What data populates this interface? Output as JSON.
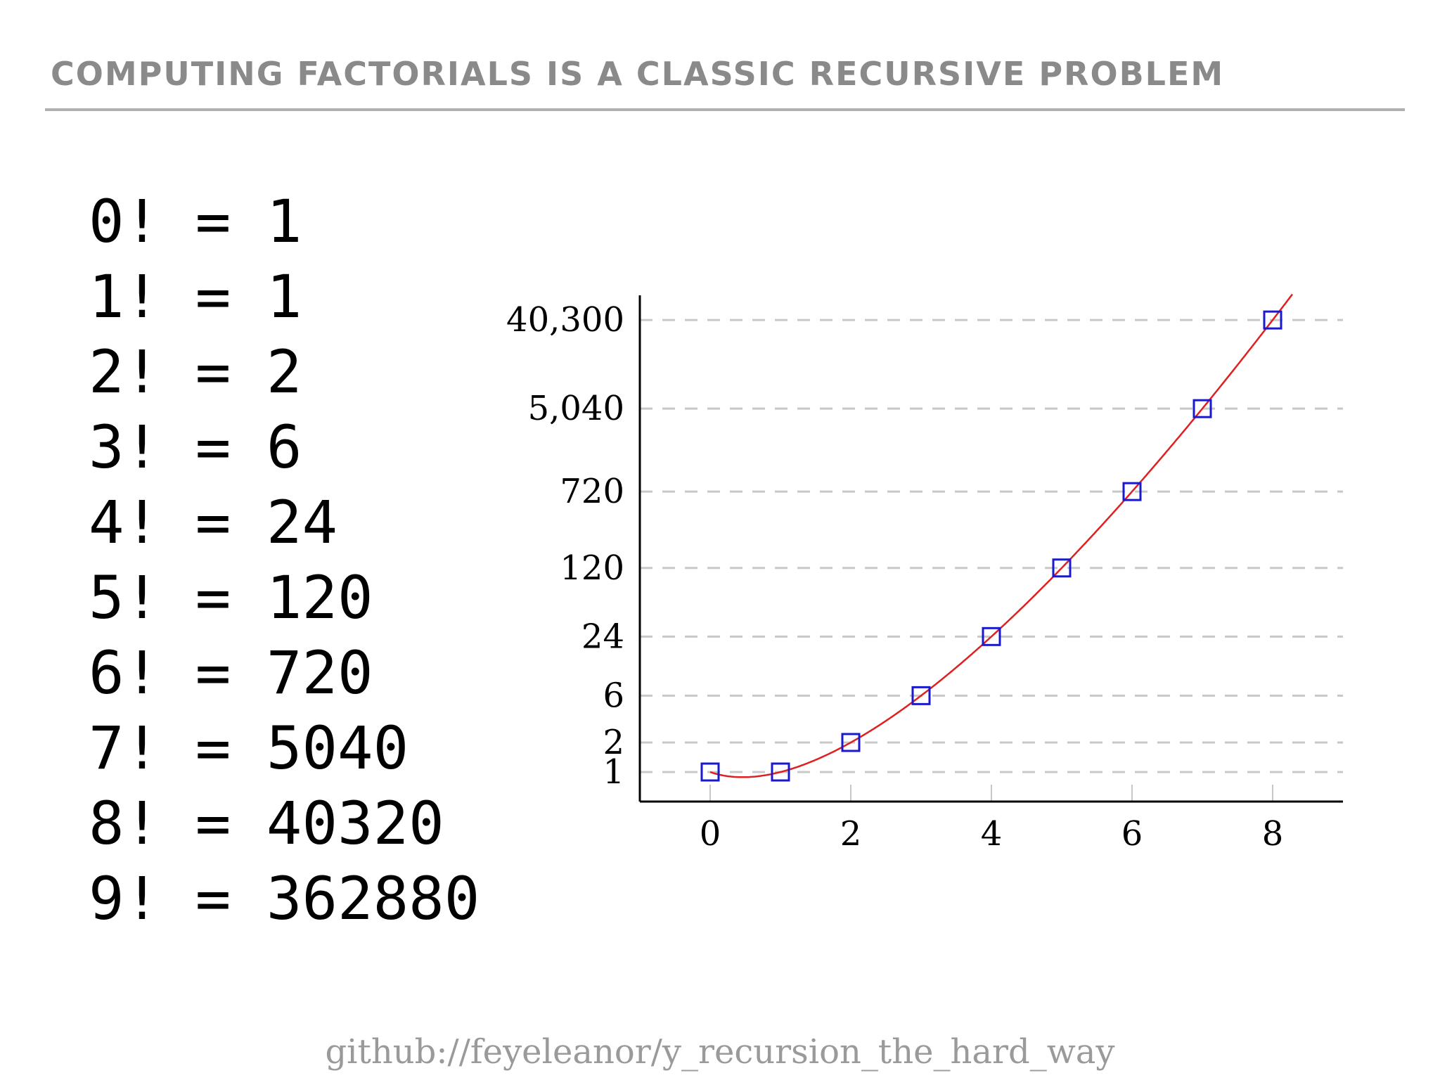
{
  "header": {
    "title": "COMPUTING FACTORIALS IS A CLASSIC RECURSIVE PROBLEM"
  },
  "factorials": [
    {
      "n": "0",
      "value": "1"
    },
    {
      "n": "1",
      "value": "1"
    },
    {
      "n": "2",
      "value": "2"
    },
    {
      "n": "3",
      "value": "6"
    },
    {
      "n": "4",
      "value": "24"
    },
    {
      "n": "5",
      "value": "120"
    },
    {
      "n": "6",
      "value": "720"
    },
    {
      "n": "7",
      "value": "5040"
    },
    {
      "n": "8",
      "value": "40320"
    },
    {
      "n": "9",
      "value": "362880"
    }
  ],
  "chart_data": {
    "type": "scatter",
    "x": [
      0,
      1,
      2,
      3,
      4,
      5,
      6,
      7,
      8
    ],
    "y": [
      1,
      1,
      2,
      6,
      24,
      120,
      720,
      5040,
      40320
    ],
    "yscale": "log",
    "xlim": [
      -1,
      9
    ],
    "x_ticks": [
      0,
      2,
      4,
      6,
      8
    ],
    "x_tick_labels": [
      "0",
      "2",
      "4",
      "6",
      "8"
    ],
    "y_ticks": [
      1,
      2,
      6,
      24,
      120,
      720,
      5040,
      40320
    ],
    "y_tick_labels": [
      "1",
      "2",
      "6",
      "24",
      "120",
      "720",
      "5,040",
      "40,300"
    ],
    "grid": "horizontal dashed at y ticks",
    "marker": "open square",
    "marker_color": "#1a1acc",
    "curve_color": "#e02020",
    "grid_color": "#c8c8c8",
    "axis_color": "#000000",
    "title": "",
    "xlabel": "",
    "ylabel": ""
  },
  "footer": {
    "link": "github://feyeleanor/y_recursion_the_hard_way"
  }
}
